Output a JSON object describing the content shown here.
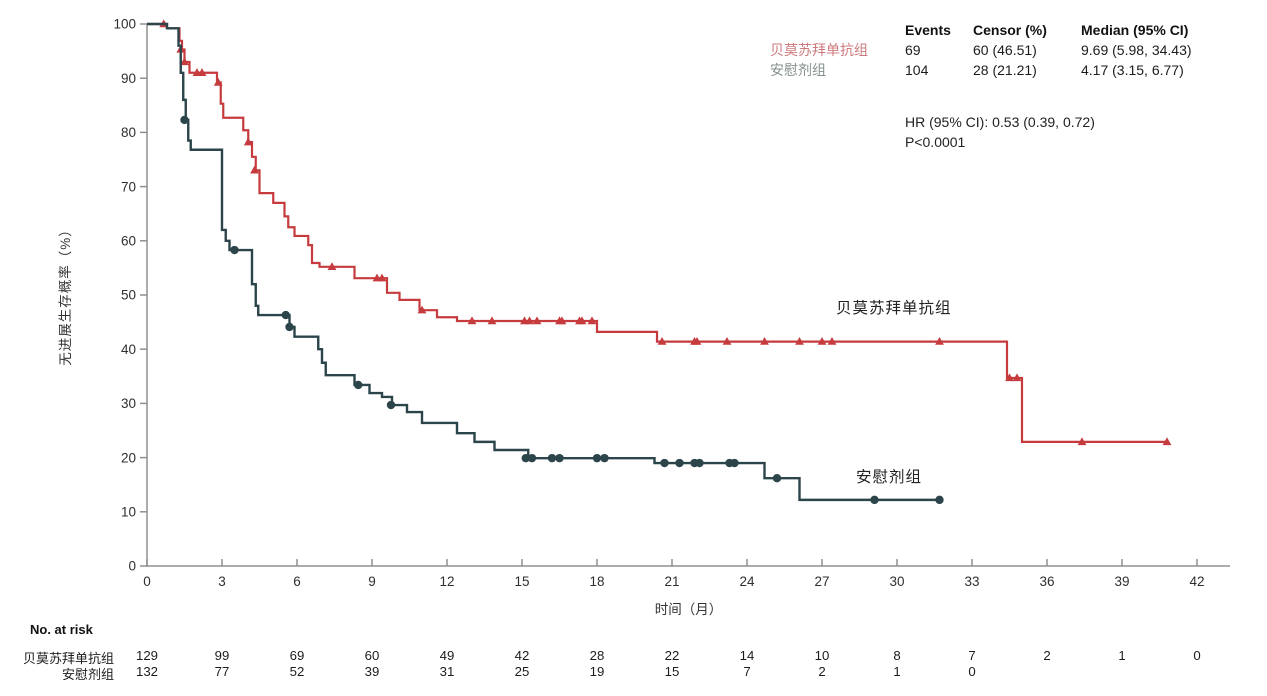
{
  "chart_data": {
    "type": "line",
    "subtype": "kaplan-meier-step",
    "title": "",
    "xlabel": "时间（月）",
    "ylabel": "无进展生存概率（%）",
    "xlim": [
      0,
      42
    ],
    "xticks": [
      0,
      3,
      6,
      9,
      12,
      15,
      18,
      21,
      24,
      27,
      30,
      33,
      36,
      39,
      42
    ],
    "ylim": [
      0,
      100
    ],
    "yticks": [
      0,
      10,
      20,
      30,
      40,
      50,
      60,
      70,
      80,
      90,
      100
    ],
    "grid": false,
    "series": [
      {
        "name": "贝莫苏拜单抗组",
        "color": "#c63b3e",
        "marker": "triangle",
        "steps": [
          [
            0,
            100
          ],
          [
            0.8,
            99.2
          ],
          [
            1.3,
            96.9
          ],
          [
            1.4,
            95.3
          ],
          [
            1.5,
            93.0
          ],
          [
            1.7,
            91.0
          ],
          [
            2.8,
            89.2
          ],
          [
            2.95,
            85.3
          ],
          [
            3.05,
            82.7
          ],
          [
            3.85,
            80.4
          ],
          [
            4.05,
            78.2
          ],
          [
            4.2,
            75.5
          ],
          [
            4.35,
            73.0
          ],
          [
            4.5,
            68.8
          ],
          [
            5.05,
            67.0
          ],
          [
            5.5,
            64.5
          ],
          [
            5.65,
            62.5
          ],
          [
            5.9,
            60.9
          ],
          [
            6.45,
            59.2
          ],
          [
            6.6,
            55.9
          ],
          [
            6.9,
            55.2
          ],
          [
            8.3,
            53.1
          ],
          [
            9.6,
            50.4
          ],
          [
            10.1,
            49.1
          ],
          [
            10.9,
            47.2
          ],
          [
            11.6,
            45.9
          ],
          [
            12.4,
            45.2
          ],
          [
            18.0,
            43.2
          ],
          [
            20.4,
            41.4
          ],
          [
            34.4,
            34.7
          ],
          [
            35.0,
            22.9
          ]
        ],
        "end_t": 40.8,
        "censors": [
          [
            0.67,
            100
          ],
          [
            1.35,
            95.3
          ],
          [
            1.5,
            93.0
          ],
          [
            2.0,
            91.0
          ],
          [
            2.2,
            91.0
          ],
          [
            2.85,
            89.2
          ],
          [
            4.05,
            78.2
          ],
          [
            4.3,
            73.0
          ],
          [
            7.4,
            55.2
          ],
          [
            9.2,
            53.1
          ],
          [
            9.4,
            53.1
          ],
          [
            11.0,
            47.2
          ],
          [
            13.0,
            45.2
          ],
          [
            13.8,
            45.2
          ],
          [
            15.1,
            45.2
          ],
          [
            15.3,
            45.2
          ],
          [
            15.6,
            45.2
          ],
          [
            16.5,
            45.2
          ],
          [
            16.6,
            45.2
          ],
          [
            17.3,
            45.2
          ],
          [
            17.4,
            45.2
          ],
          [
            17.8,
            45.2
          ],
          [
            20.6,
            41.4
          ],
          [
            21.9,
            41.4
          ],
          [
            22.0,
            41.4
          ],
          [
            23.2,
            41.4
          ],
          [
            24.7,
            41.4
          ],
          [
            26.1,
            41.4
          ],
          [
            27.0,
            41.4
          ],
          [
            27.4,
            41.4
          ],
          [
            31.7,
            41.4
          ],
          [
            34.5,
            34.7
          ],
          [
            34.8,
            34.7
          ],
          [
            37.4,
            22.9
          ],
          [
            40.8,
            22.9
          ]
        ]
      },
      {
        "name": "安慰剂组",
        "color": "#2c454b",
        "marker": "circle",
        "steps": [
          [
            0,
            100
          ],
          [
            0.8,
            99.2
          ],
          [
            1.26,
            96.0
          ],
          [
            1.35,
            91.0
          ],
          [
            1.45,
            86.0
          ],
          [
            1.55,
            82.3
          ],
          [
            1.65,
            78.5
          ],
          [
            1.75,
            76.8
          ],
          [
            3.0,
            62.0
          ],
          [
            3.15,
            60.0
          ],
          [
            3.3,
            58.3
          ],
          [
            4.2,
            52.0
          ],
          [
            4.35,
            48.0
          ],
          [
            4.45,
            46.3
          ],
          [
            5.7,
            44.1
          ],
          [
            5.9,
            42.3
          ],
          [
            6.85,
            40.0
          ],
          [
            7.0,
            37.5
          ],
          [
            7.15,
            35.2
          ],
          [
            8.3,
            33.4
          ],
          [
            8.9,
            31.9
          ],
          [
            9.4,
            31.2
          ],
          [
            9.8,
            29.7
          ],
          [
            10.4,
            28.4
          ],
          [
            11.0,
            26.4
          ],
          [
            12.4,
            24.5
          ],
          [
            13.1,
            22.9
          ],
          [
            13.9,
            21.4
          ],
          [
            15.25,
            19.9
          ],
          [
            20.3,
            19.0
          ],
          [
            24.7,
            16.2
          ],
          [
            26.1,
            12.2
          ]
        ],
        "end_t": 31.7,
        "censors": [
          [
            1.5,
            82.3
          ],
          [
            3.5,
            58.3
          ],
          [
            5.55,
            46.3
          ],
          [
            5.7,
            44.1
          ],
          [
            8.45,
            33.4
          ],
          [
            9.76,
            29.7
          ],
          [
            15.15,
            19.9
          ],
          [
            15.4,
            19.9
          ],
          [
            16.2,
            19.9
          ],
          [
            16.5,
            19.9
          ],
          [
            18.0,
            19.9
          ],
          [
            18.3,
            19.9
          ],
          [
            20.7,
            19.0
          ],
          [
            21.3,
            19.0
          ],
          [
            21.9,
            19.0
          ],
          [
            22.1,
            19.0
          ],
          [
            23.3,
            19.0
          ],
          [
            23.5,
            19.0
          ],
          [
            25.2,
            16.2
          ],
          [
            29.1,
            12.2
          ],
          [
            31.7,
            12.2
          ]
        ]
      }
    ]
  },
  "stats_table": {
    "headers": {
      "events": "Events",
      "censor": "Censor (%)",
      "median": "Median (95% CI)"
    },
    "rows": [
      {
        "label": "贝莫苏拜单抗组",
        "events": "69",
        "censor": "60 (46.51)",
        "median": "9.69 (5.98, 34.43)"
      },
      {
        "label": "安慰剂组",
        "events": "104",
        "censor": "28 (21.21)",
        "median": "4.17 (3.15, 6.77)"
      }
    ]
  },
  "hr_text": "HR (95% CI): 0.53 (0.39, 0.72)",
  "p_text": "P<0.0001",
  "at_risk": {
    "title": "No. at risk",
    "rows": [
      {
        "label": "贝莫苏拜单抗组",
        "values": [
          129,
          99,
          69,
          60,
          49,
          42,
          28,
          22,
          14,
          10,
          8,
          7,
          2,
          1,
          0
        ]
      },
      {
        "label": "安慰剂组",
        "values": [
          132,
          77,
          52,
          39,
          31,
          25,
          19,
          15,
          7,
          2,
          1,
          0
        ]
      }
    ]
  }
}
